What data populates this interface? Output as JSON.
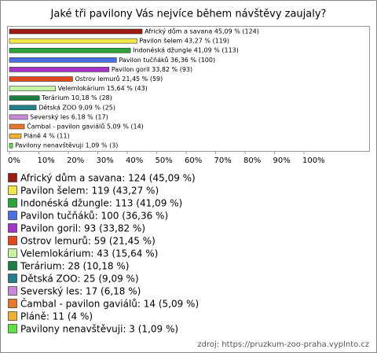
{
  "chart_data": {
    "type": "bar",
    "orientation": "horizontal",
    "title": "Jaké tři pavilony Vás nejvíce během návštěvy zaujaly?",
    "categories": [
      "Africký dům a savana",
      "Pavilon šelem",
      "Indonéská džungle",
      "Pavilon tučňáků",
      "Pavilon goril",
      "Ostrov lemurů",
      "Velemlokárium",
      "Terárium",
      "Dětská ZOO",
      "Severský les",
      "Čambal - pavilon gaviálů",
      "Pláně",
      "Pavilony nenavštěvuji"
    ],
    "values": [
      45.09,
      43.27,
      41.09,
      36.36,
      33.82,
      21.45,
      15.64,
      10.18,
      9.09,
      6.18,
      5.09,
      4,
      1.09
    ],
    "value_labels": [
      "Africký dům a savana 45,09 % (124)",
      "Pavilon šelem 43,27 % (119)",
      "Indonéská džungle 41,09 % (113)",
      "Pavilon tučňáků 36,36 % (100)",
      "Pavilon goril 33,82 % (93)",
      "Ostrov lemurů 21,45 % (59)",
      "Velemlokárium 15,64 % (43)",
      "Terárium 10,18 % (28)",
      "Dětská ZOO 9,09 % (25)",
      "Severský les 6,18 % (17)",
      "Čambal - pavilon gaviálů 5,09 % (14)",
      "Pláně 4 % (11)",
      "Pavilony nenavštěvuji 1,09 % (3)"
    ],
    "legend": [
      "Africký dům a savana: 124 (45,09 %)",
      "Pavilon šelem: 119 (43,27 %)",
      "Indonéská džungle: 113 (41,09 %)",
      "Pavilon tučňáků: 100 (36,36 %)",
      "Pavilon goril: 93 (33,82 %)",
      "Ostrov lemurů: 59 (21,45 %)",
      "Velemlokárium: 43 (15,64 %)",
      "Terárium: 28 (10,18 %)",
      "Dětská ZOO: 25 (9,09 %)",
      "Severský les: 17 (6,18 %)",
      "Čambal - pavilon gaviálů: 14 (5,09 %)",
      "Pláně: 11 (4 %)",
      "Pavilony nenavštěvuji: 3 (1,09 %)"
    ],
    "colors": [
      "#9b1c14",
      "#f2e64a",
      "#2aa33a",
      "#4a6fe3",
      "#a335c8",
      "#e2481c",
      "#c6f2a4",
      "#1f7d43",
      "#23808a",
      "#c98ad8",
      "#e5782a",
      "#f0b233",
      "#5fe047"
    ],
    "xlim": [
      0,
      100
    ],
    "xticks": [
      {
        "value": 0,
        "label": "0%"
      },
      {
        "value": 10,
        "label": "10%"
      },
      {
        "value": 20,
        "label": "20%"
      },
      {
        "value": 30,
        "label": "30%"
      },
      {
        "value": 40,
        "label": "40%"
      },
      {
        "value": 50,
        "label": "50%"
      },
      {
        "value": 60,
        "label": "60%"
      },
      {
        "value": 70,
        "label": "70%"
      },
      {
        "value": 80,
        "label": "80%"
      },
      {
        "value": 90,
        "label": "90%"
      },
      {
        "value": 100,
        "label": "100%"
      }
    ],
    "source": "zdroj: https://pruzkum-zoo-praha.vyplnto.cz"
  }
}
